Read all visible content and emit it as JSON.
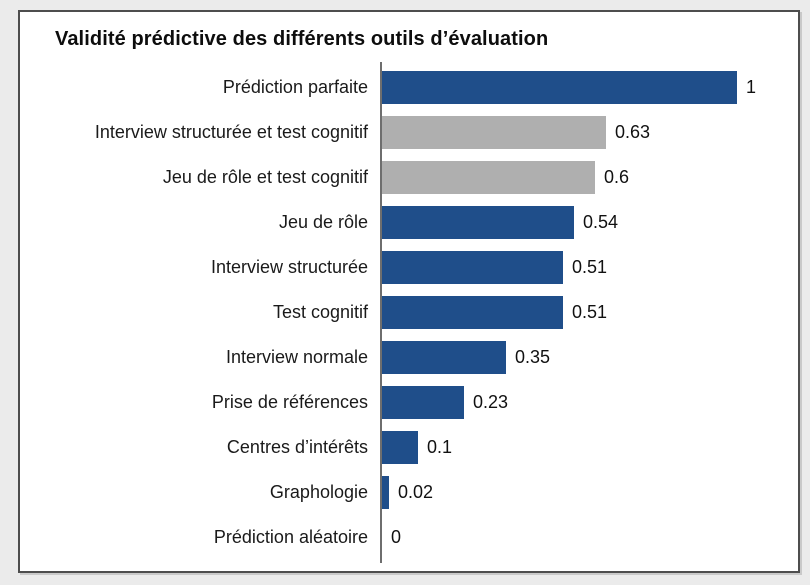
{
  "chart_data": {
    "type": "bar",
    "orientation": "horizontal",
    "title": "Validité prédictive des différents outils d’évaluation",
    "categories": [
      "Prédiction parfaite",
      "Interview structurée et test cognitif",
      "Jeu de rôle et test cognitif",
      "Jeu de rôle",
      "Interview structurée",
      "Test cognitif",
      "Interview normale",
      "Prise de références",
      "Centres d’intérêts",
      "Graphologie",
      "Prédiction aléatoire"
    ],
    "values": [
      1,
      0.63,
      0.6,
      0.54,
      0.51,
      0.51,
      0.35,
      0.23,
      0.1,
      0.02,
      0
    ],
    "value_labels": [
      "1",
      "0.63",
      "0.6",
      "0.54",
      "0.51",
      "0.51",
      "0.35",
      "0.23",
      "0.1",
      "0.02",
      "0"
    ],
    "bar_colors": [
      "#1F4E8A",
      "#AFAFAF",
      "#AFAFAF",
      "#1F4E8A",
      "#1F4E8A",
      "#1F4E8A",
      "#1F4E8A",
      "#1F4E8A",
      "#1F4E8A",
      "#1F4E8A",
      "#1F4E8A"
    ],
    "xlim": [
      0,
      1
    ],
    "xlabel": "",
    "ylabel": "",
    "grid": false,
    "legend": false,
    "colors": {
      "primary_blue": "#1F4E8A",
      "highlight_gray": "#AFAFAF",
      "axis_line": "#6e6e6e",
      "panel_background": "#ffffff",
      "page_background": "#ebebeb",
      "frame_border": "#4d4d4d",
      "text": "#111111"
    }
  }
}
